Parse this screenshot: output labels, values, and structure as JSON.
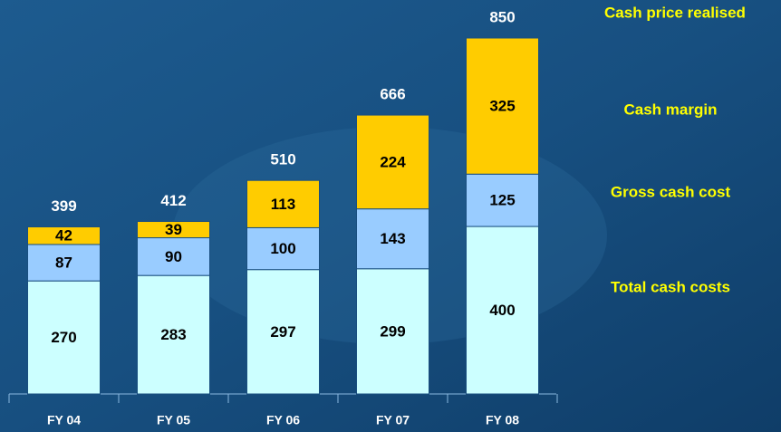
{
  "chart_data": {
    "type": "stacked-bar",
    "categories": [
      "FY 04",
      "FY 05",
      "FY 06",
      "FY 07",
      "FY 08"
    ],
    "series": [
      {
        "name": "Total cash costs",
        "color": "#ccffff",
        "values": [
          270,
          283,
          297,
          299,
          400
        ]
      },
      {
        "name": "Gross cash cost",
        "color": "#99ccff",
        "values": [
          87,
          90,
          100,
          143,
          125
        ]
      },
      {
        "name": "Cash margin",
        "color": "#ffcc00",
        "values": [
          42,
          39,
          113,
          224,
          325
        ]
      }
    ],
    "totals": {
      "name": "Cash price realised",
      "values": [
        399,
        412,
        510,
        666,
        850
      ]
    }
  }
}
